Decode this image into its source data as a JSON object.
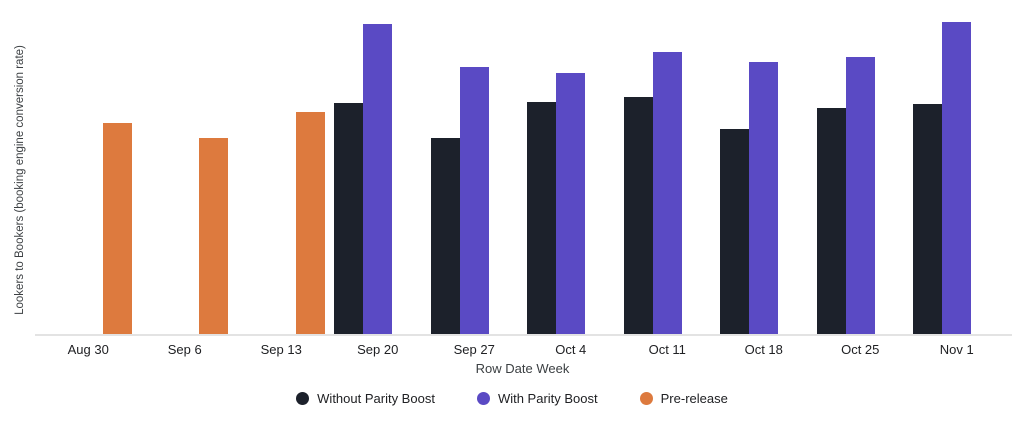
{
  "chart_data": {
    "type": "bar",
    "title": "",
    "xlabel": "Row Date Week",
    "ylabel": "Lookers to Bookers (booking engine conversion rate)",
    "categories": [
      "Aug 30",
      "Sep 6",
      "Sep 13",
      "Sep 20",
      "Sep 27",
      "Oct 4",
      "Oct 11",
      "Oct 18",
      "Oct 25",
      "Nov 1"
    ],
    "series": [
      {
        "name": "Without Parity Boost",
        "color": "#1C212B",
        "values": [
          null,
          null,
          null,
          71.4,
          60.6,
          71.7,
          73.2,
          63.4,
          69.8,
          71.1
        ]
      },
      {
        "name": "With Parity Boost",
        "color": "#5A4AC4",
        "values": [
          null,
          null,
          null,
          95.7,
          82.5,
          80.6,
          87.1,
          84.0,
          85.5,
          96.3
        ]
      },
      {
        "name": "Pre-release",
        "color": "#DD7A3E",
        "values": [
          65.2,
          60.6,
          68.6,
          null,
          null,
          null,
          null,
          null,
          null,
          null
        ]
      }
    ],
    "value_scale": "relative bar height as % of plot height (y-axis shows no numeric tick labels)",
    "y_axis_ticks": [],
    "grid": false,
    "legend_position": "bottom-center"
  },
  "colors": {
    "background": "#FFFFFF",
    "axis_line": "#E3E3E3",
    "tick_label": "#202124",
    "axis_title": "#3C4043",
    "legend_label": "#202124"
  }
}
